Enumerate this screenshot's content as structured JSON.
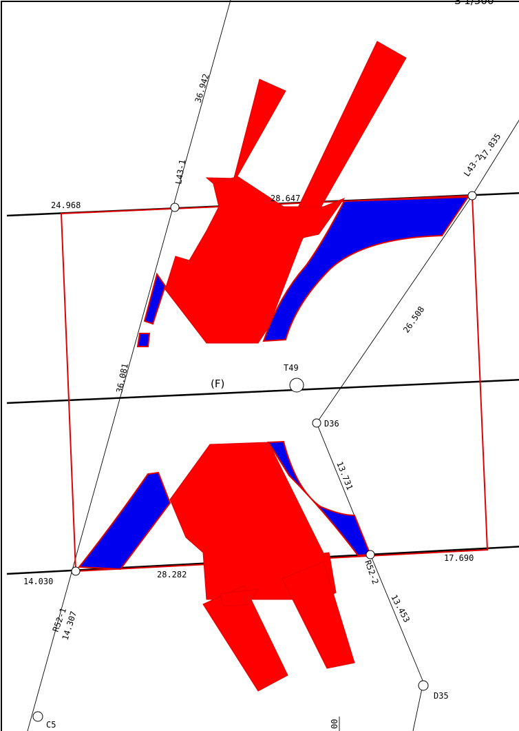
{
  "header": {
    "scale_fragment": "S 1/500"
  },
  "area_label": "(F)",
  "points": {
    "l43_1": "L43-1",
    "l43_2": "L43-2",
    "t49": "T49",
    "d36": "D36",
    "r52_1": "R52-1",
    "r52_2": "R52-2",
    "d35": "D35",
    "c5": "C5"
  },
  "distances": {
    "d36942": "36.942",
    "d24968": "24.968",
    "d28647": "28.647",
    "d17835": "17.835",
    "d26508": "26.508",
    "d36081": "36.081",
    "d13731": "13.731",
    "d14030": "14.030",
    "d28282": "28.282",
    "d17690": "17.690",
    "d13453": "13.453",
    "d14307": "14.307"
  },
  "bottom_fragment": "00",
  "colors": {
    "structure_fill": "#ff0000",
    "fill_area": "#0000ee",
    "boundary": "#e00000"
  }
}
